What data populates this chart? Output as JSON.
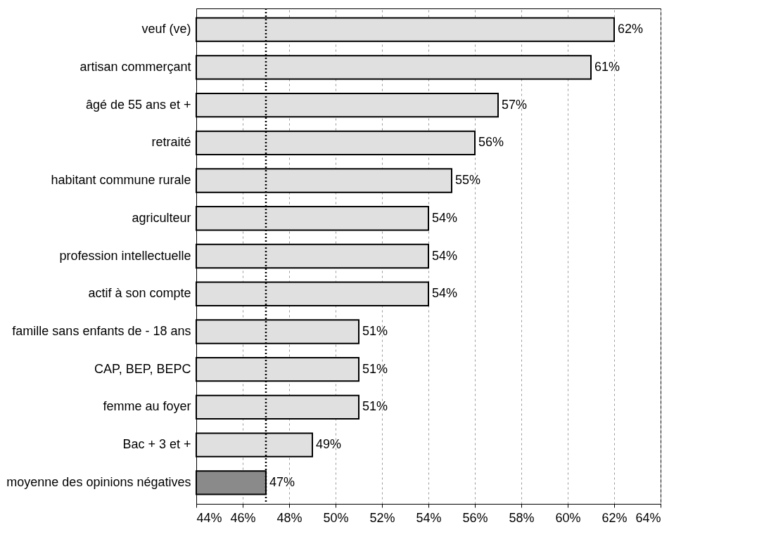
{
  "chart_data": {
    "type": "bar",
    "orientation": "horizontal",
    "categories": [
      "veuf (ve)",
      "artisan commerçant",
      "âgé de 55 ans et +",
      "retraité",
      "habitant commune rurale",
      "agriculteur",
      "profession intellectuelle",
      "actif à son compte",
      "famille sans enfants de - 18 ans",
      "CAP, BEP, BEPC",
      "femme au foyer",
      "Bac + 3 et +",
      "moyenne des opinions négatives"
    ],
    "values": [
      62,
      61,
      57,
      56,
      55,
      54,
      54,
      54,
      51,
      51,
      51,
      49,
      47
    ],
    "value_labels": [
      "62%",
      "61%",
      "57%",
      "56%",
      "55%",
      "54%",
      "54%",
      "54%",
      "51%",
      "51%",
      "51%",
      "49%",
      "47%"
    ],
    "colors": [
      "#e0e0e0",
      "#e0e0e0",
      "#e0e0e0",
      "#e0e0e0",
      "#e0e0e0",
      "#e0e0e0",
      "#e0e0e0",
      "#e0e0e0",
      "#e0e0e0",
      "#e0e0e0",
      "#e0e0e0",
      "#e0e0e0",
      "#8a8a8a"
    ],
    "xlim": [
      44,
      64
    ],
    "xticks": [
      {
        "value": 44,
        "label": "44%"
      },
      {
        "value": 46,
        "label": "46%"
      },
      {
        "value": 48,
        "label": "48%"
      },
      {
        "value": 50,
        "label": "50%"
      },
      {
        "value": 52,
        "label": "52%"
      },
      {
        "value": 54,
        "label": "54%"
      },
      {
        "value": 56,
        "label": "56%"
      },
      {
        "value": 58,
        "label": "58%"
      },
      {
        "value": 60,
        "label": "60%"
      },
      {
        "value": 62,
        "label": "62%"
      },
      {
        "value": 64,
        "label": "64%"
      }
    ],
    "grid": "x",
    "legend": false,
    "ref_lines": [
      {
        "axis": "x",
        "value": 47,
        "line_style": "dotted",
        "color": "#000000"
      }
    ]
  }
}
